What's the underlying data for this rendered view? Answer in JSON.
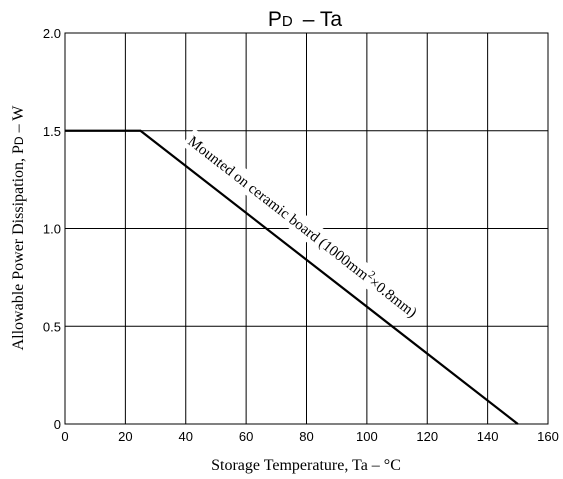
{
  "chart_data": {
    "type": "line",
    "title_main": "P",
    "title_sub": "D",
    "title_rest": "–  Ta",
    "xlabel": "Storage Temperature, Ta  –  °C",
    "ylabel_main": "Allowable Power Dissipation, P",
    "ylabel_sub": "D",
    "ylabel_rest": " – W",
    "xlim": [
      0,
      160
    ],
    "ylim": [
      0,
      2.0
    ],
    "x_ticks": [
      0,
      20,
      40,
      60,
      80,
      100,
      120,
      140,
      160
    ],
    "x_tick_labels": [
      "0",
      "20",
      "40",
      "60",
      "80",
      "100",
      "120",
      "140",
      "160"
    ],
    "y_ticks": [
      0,
      0.5,
      1.0,
      1.5,
      2.0
    ],
    "y_tick_labels": [
      "0",
      "0.5",
      "1.0",
      "1.5",
      "2.0"
    ],
    "grid": true,
    "series": [
      {
        "x": [
          0,
          25,
          150
        ],
        "y": [
          1.5,
          1.5,
          0
        ]
      }
    ],
    "annotation": {
      "text_main": "Mounted on ceramic board (1000mm",
      "text_sup": "2",
      "text_rest": "×0.8mm)"
    }
  }
}
